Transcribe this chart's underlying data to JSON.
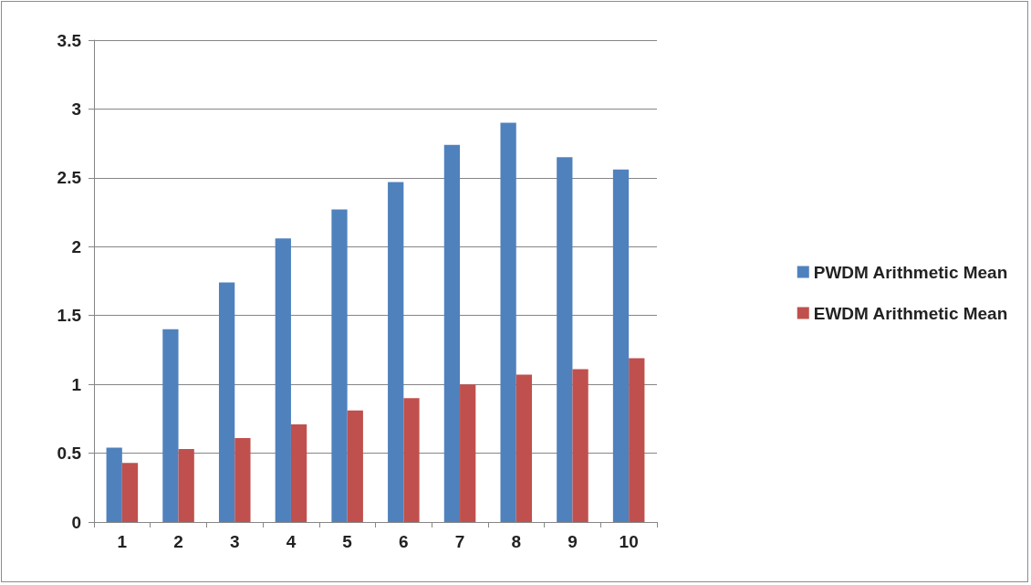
{
  "chart_data": {
    "type": "bar",
    "categories": [
      "1",
      "2",
      "3",
      "4",
      "5",
      "6",
      "7",
      "8",
      "9",
      "10"
    ],
    "series": [
      {
        "name": "PWDM Arithmetic Mean",
        "color": "#4f81bd",
        "values": [
          0.54,
          1.4,
          1.74,
          2.06,
          2.27,
          2.47,
          2.74,
          2.9,
          2.65,
          2.56
        ]
      },
      {
        "name": "EWDM Arithmetic Mean",
        "color": "#c0504d",
        "values": [
          0.43,
          0.53,
          0.61,
          0.71,
          0.81,
          0.9,
          1.0,
          1.07,
          1.11,
          1.19
        ]
      }
    ],
    "ylim": [
      0,
      3.5
    ],
    "yticks": [
      0,
      0.5,
      1,
      1.5,
      2,
      2.5,
      3,
      3.5
    ],
    "grid": "y",
    "legend": "right"
  }
}
